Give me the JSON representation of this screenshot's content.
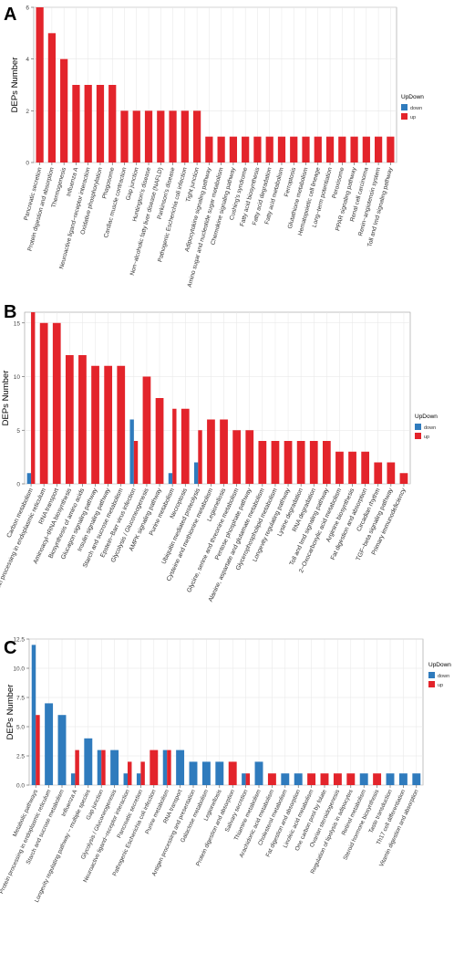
{
  "legend_title": "UpDown",
  "legend_labels": [
    "down",
    "up"
  ],
  "colors": {
    "down": "#2f7bbd",
    "up": "#e3242b",
    "panel_bg": "#ffffff",
    "grid": "#e6e6e6"
  },
  "chart_data": [
    {
      "type": "bar",
      "panel_label": "A",
      "ylabel": "DEPs Number",
      "ylim": [
        0,
        6
      ],
      "yticks": [
        0,
        2,
        4,
        6
      ],
      "legend_title": "UpDown",
      "legend": [
        "down",
        "up"
      ],
      "legend_position": "right",
      "grid": true,
      "categories": [
        "Pancreatic secretion",
        "Protein digestion and absorption",
        "Thermogenesis",
        "Influenza A",
        "Neuroactive ligand−receptor interaction",
        "Oxidative phosphorylation",
        "Phagosome",
        "Cardiac muscle contraction",
        "Gap junction",
        "Huntington's disease",
        "Non−alcoholic fatty liver disease (NAFLD)",
        "Parkinson's disease",
        "Pathogenic Escherichia coli infection",
        "Tight junction",
        "Adipocytokine signaling pathway",
        "Amino sugar and nucleotide sugar metabolism",
        "Chemokine signaling pathway",
        "Cushing's syndrome",
        "Fatty acid biosynthesis",
        "Fatty acid degradation",
        "Fatty acid metabolism",
        "Ferroptosis",
        "Glutathione metabolism",
        "Hematopoietic cell lineage",
        "Long−term potentiation",
        "Peroxisome",
        "PPAR signaling pathway",
        "Renal cell carcinoma",
        "Renin−angiotensin system",
        "Toll and Imd signaling pathway"
      ],
      "series": [
        {
          "name": "down",
          "values": [
            0,
            0,
            0,
            0,
            0,
            0,
            0,
            0,
            0,
            0,
            0,
            0,
            0,
            0,
            0,
            0,
            0,
            0,
            0,
            0,
            0,
            0,
            0,
            0,
            0,
            0,
            0,
            0,
            0,
            0
          ]
        },
        {
          "name": "up",
          "values": [
            6,
            5,
            4,
            3,
            3,
            3,
            3,
            2,
            2,
            2,
            2,
            2,
            2,
            2,
            1,
            1,
            1,
            1,
            1,
            1,
            1,
            1,
            1,
            1,
            1,
            1,
            1,
            1,
            1,
            1
          ]
        }
      ]
    },
    {
      "type": "bar",
      "panel_label": "B",
      "ylabel": "DEPs Number",
      "ylim": [
        0,
        16
      ],
      "yticks": [
        0,
        5,
        10,
        15
      ],
      "legend_title": "UpDown",
      "legend": [
        "down",
        "up"
      ],
      "legend_position": "right",
      "grid": true,
      "categories": [
        "Carbon metabolism",
        "Protein processing in endoplasmic reticulum",
        "RNA transport",
        "Aminoacyl−tRNA biosynthesis",
        "Biosynthesis of amino acids",
        "Glucagon signaling pathway",
        "Insulin signaling pathway",
        "Starch and sucrose metabolism",
        "Epstein−Barr virus infection",
        "Glycolysis / Gluconeogenesis",
        "AMPK signaling pathway",
        "Purine metabolism",
        "Necroptosis",
        "Ubiquitin mediated proteolysis",
        "Cysteine and methionine metabolism",
        "Legionellosis",
        "Glycine, serine and threonine metabolism",
        "Pentose phosphate pathway",
        "Alanine, aspartate and glutamate metabolism",
        "Glycerophospholipid metabolism",
        "Longevity regulating pathway",
        "Lysine degradation",
        "RNA degradation",
        "Toll and Imd signaling pathway",
        "2−Oxocarboxylic acid metabolism",
        "Arginine biosynthesis",
        "Fat digestion and absorption",
        "Circadian rhythm",
        "TGF−beta signaling pathway",
        "Primary immunodeficiency"
      ],
      "series": [
        {
          "name": "down",
          "values": [
            1,
            0,
            0,
            0,
            0,
            0,
            0,
            0,
            6,
            0,
            0,
            1,
            0,
            2,
            0,
            0,
            0,
            0,
            0,
            0,
            0,
            0,
            0,
            0,
            0,
            0,
            0,
            0,
            0,
            0
          ]
        },
        {
          "name": "up",
          "values": [
            16,
            15,
            15,
            12,
            12,
            11,
            11,
            11,
            4,
            10,
            8,
            7,
            7,
            5,
            6,
            6,
            5,
            5,
            4,
            4,
            4,
            4,
            4,
            4,
            3,
            3,
            3,
            2,
            2,
            1
          ]
        }
      ]
    },
    {
      "type": "bar",
      "panel_label": "C",
      "ylabel": "DEPs Number",
      "ylim": [
        0,
        12.5
      ],
      "yticks": [
        0,
        2.5,
        5,
        7.5,
        10,
        12.5
      ],
      "ytick_labels": [
        "0.0",
        "2.5",
        "5.0",
        "7.5",
        "10.0",
        "12.5"
      ],
      "legend_title": "UpDown",
      "legend": [
        "down",
        "up"
      ],
      "legend_position": "right",
      "grid": true,
      "categories": [
        "Metabolic pathways",
        "Protein processing in endoplasmic reticulum",
        "Starch and sucrose metabolism",
        "Influenza A",
        "Longevity regulating pathway − multiple species",
        "Gap junction",
        "Glycolysis / Gluconeogenesis",
        "Neuroactive ligand−receptor interaction",
        "Pancreatic secretion",
        "Pathogenic Escherichia coli infection",
        "Purine metabolism",
        "RNA transport",
        "Antigen processing and presentation",
        "Galactose metabolism",
        "Legionellosis",
        "Protein digestion and absorption",
        "Salivary secretion",
        "Thiamine metabolism",
        "Arachidonic acid metabolism",
        "Cholesterol metabolism",
        "Fat digestion and absorption",
        "Linoleic acid metabolism",
        "One carbon pool by folate",
        "Ovarian steroidogenesis",
        "Regulation of lipolysis in adipocytes",
        "Retinol metabolism",
        "Steroid hormone biosynthesis",
        "Taste transduction",
        "Th17 cell differentiation",
        "Vitamin digestion and absorption"
      ],
      "series": [
        {
          "name": "down",
          "values": [
            12,
            7,
            6,
            1,
            4,
            3,
            3,
            1,
            1,
            0,
            3,
            3,
            2,
            2,
            2,
            0,
            1,
            2,
            0,
            1,
            1,
            0,
            0,
            0,
            0,
            1,
            0,
            1,
            1,
            1
          ]
        },
        {
          "name": "up",
          "values": [
            6,
            0,
            0,
            3,
            0,
            3,
            0,
            2,
            2,
            3,
            3,
            0,
            0,
            0,
            0,
            2,
            1,
            0,
            1,
            0,
            0,
            1,
            1,
            1,
            1,
            0,
            1,
            0,
            0,
            0
          ]
        }
      ]
    }
  ]
}
